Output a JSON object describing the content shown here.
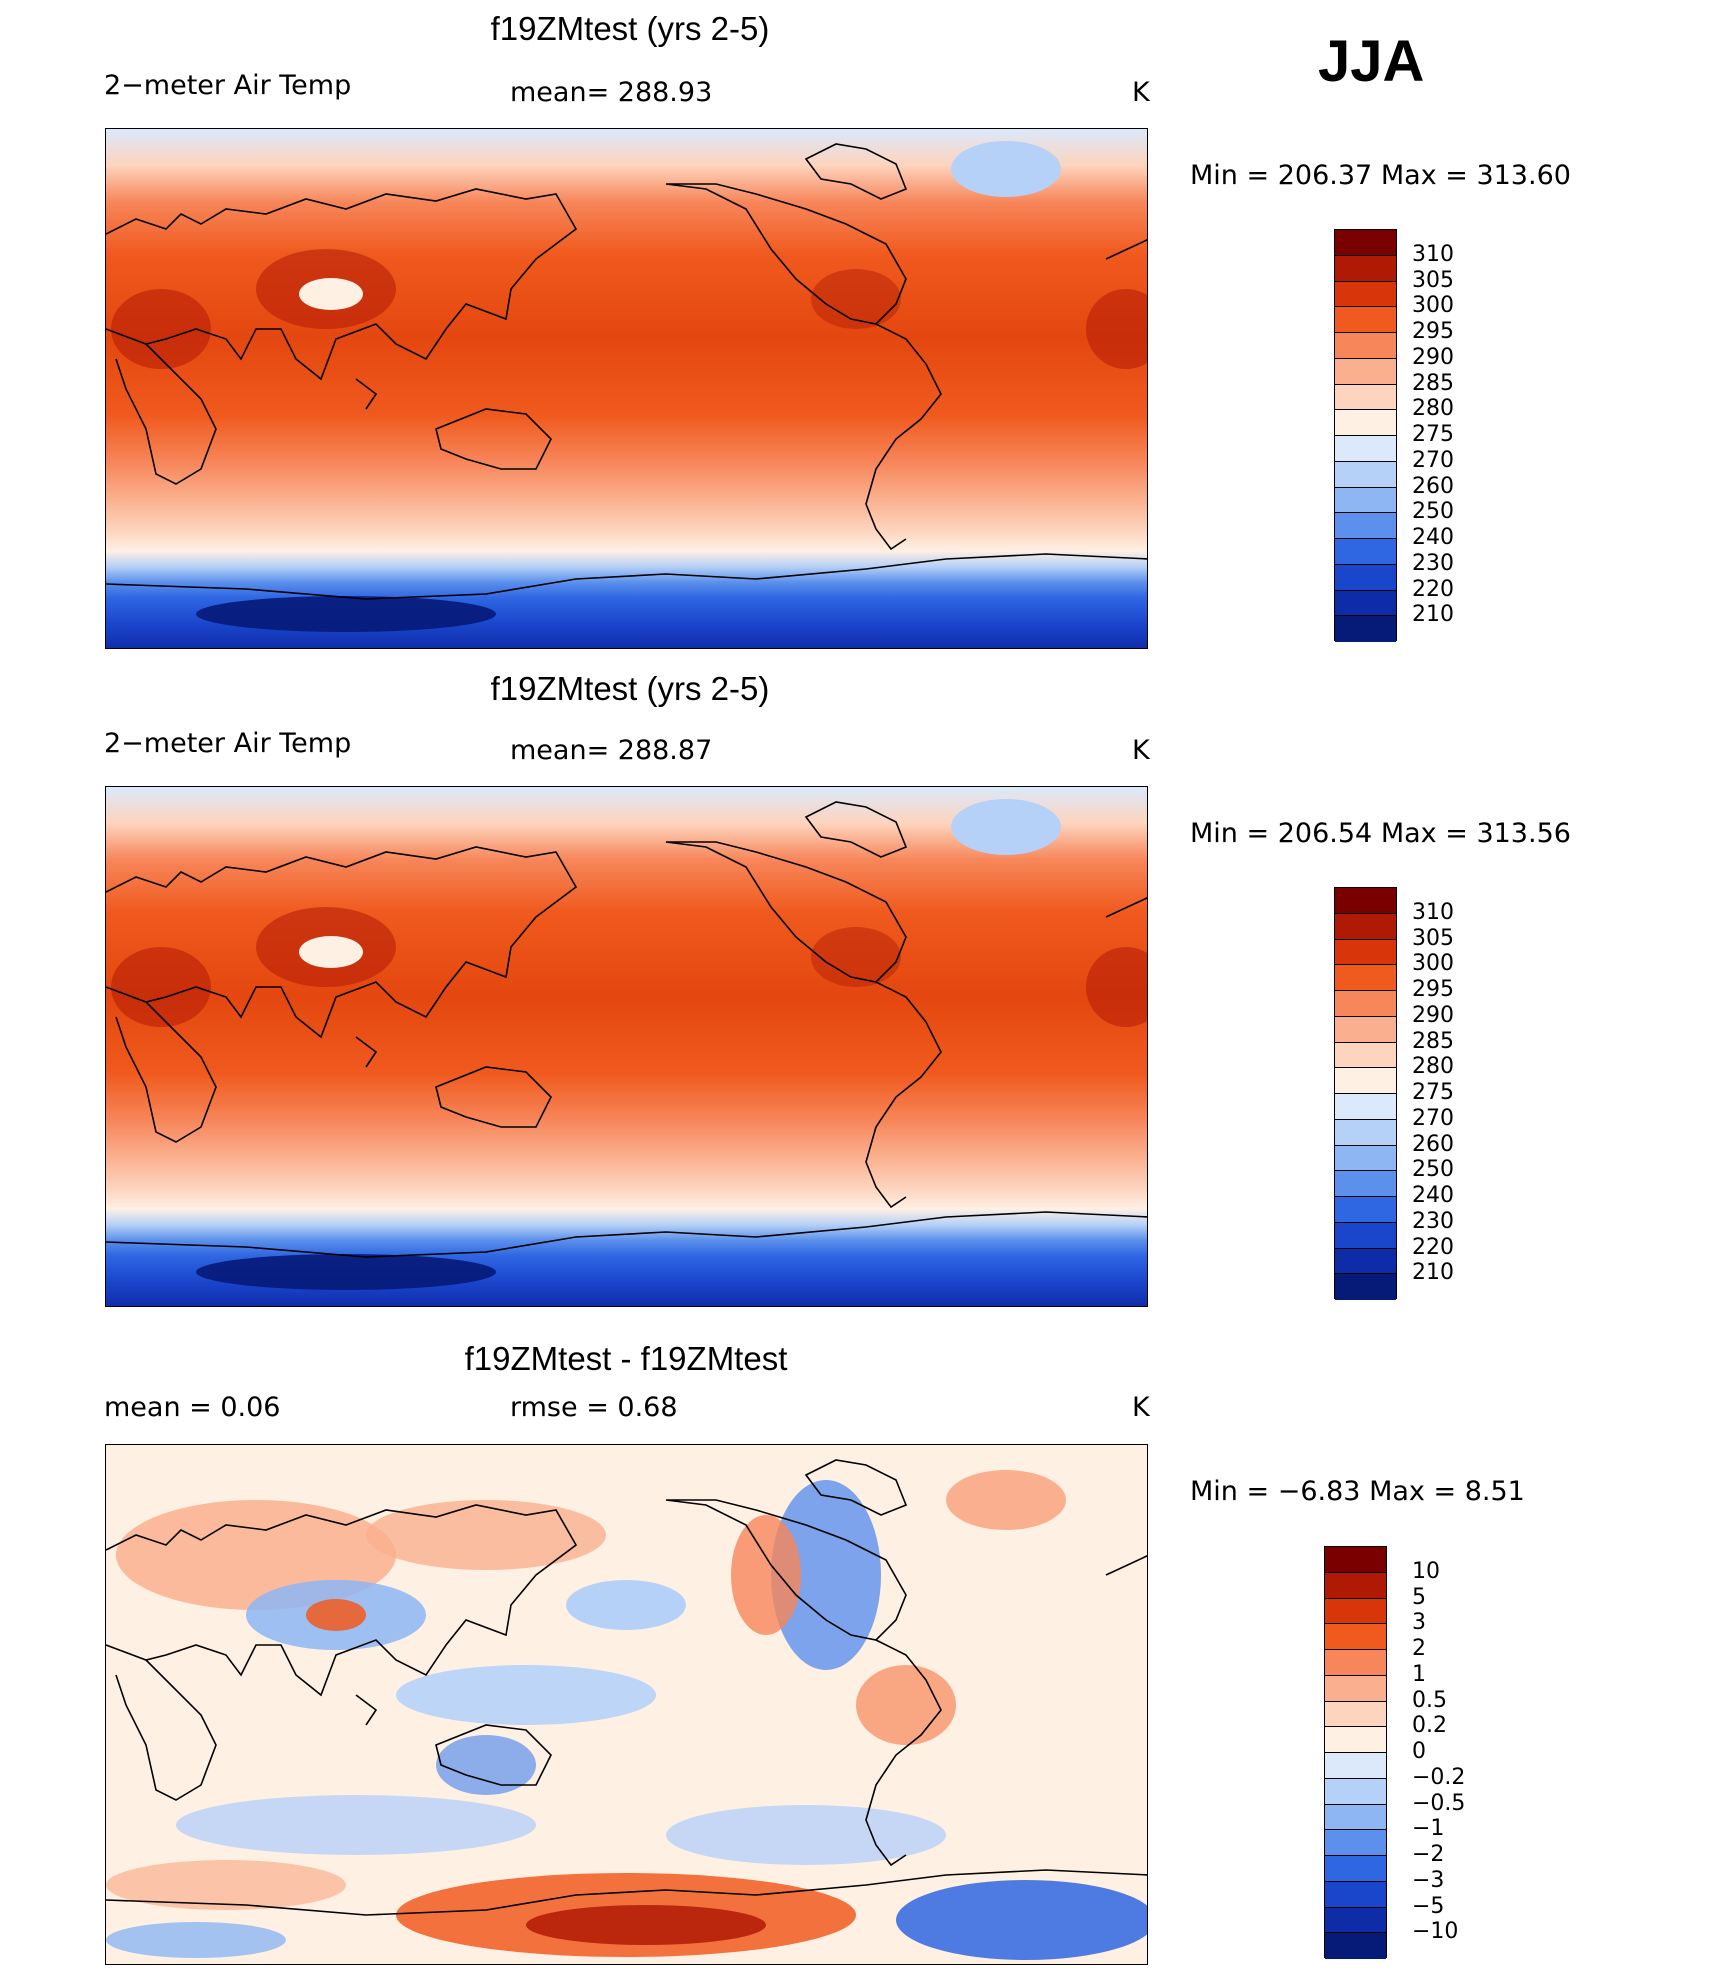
{
  "season": "JJA",
  "panels": [
    {
      "title": "f19ZMtest (yrs 2-5)",
      "left_label": "2−meter Air Temp",
      "mean_label": "mean=  288.93",
      "units": "K",
      "min_label": "Min",
      "min_value": "206.37",
      "max_label": "Max",
      "max_value": "313.60",
      "colorbar_ticks": [
        "310",
        "305",
        "300",
        "295",
        "290",
        "285",
        "280",
        "275",
        "270",
        "260",
        "250",
        "240",
        "230",
        "220",
        "210"
      ]
    },
    {
      "title": "f19ZMtest (yrs 2-5)",
      "left_label": "2−meter Air Temp",
      "mean_label": "mean=  288.87",
      "units": "K",
      "min_label": "Min",
      "min_value": "206.54",
      "max_label": "Max",
      "max_value": "313.56",
      "colorbar_ticks": [
        "310",
        "305",
        "300",
        "295",
        "290",
        "285",
        "280",
        "275",
        "270",
        "260",
        "250",
        "240",
        "230",
        "220",
        "210"
      ]
    },
    {
      "title": "f19ZMtest - f19ZMtest",
      "left_label": "mean =     0.06",
      "mean_label": "rmse =     0.68",
      "units": "K",
      "min_label": "Min",
      "min_value": "−6.83",
      "max_label": "Max",
      "max_value": "8.51",
      "colorbar_ticks": [
        "10",
        "5",
        "3",
        "2",
        "1",
        "0.5",
        "0.2",
        "0",
        "−0.2",
        "−0.5",
        "−1",
        "−2",
        "−3",
        "−5",
        "−10"
      ]
    }
  ],
  "colors": {
    "temp_scale": [
      "#7a0000",
      "#b01a05",
      "#d9350a",
      "#f05a1e",
      "#f7865a",
      "#fab08e",
      "#fdd4bd",
      "#fff0e4",
      "#dbe9fb",
      "#b6d1f7",
      "#8db6f3",
      "#5b90ec",
      "#2f66e2",
      "#1a46cc",
      "#0f2ca8",
      "#061a78"
    ],
    "diff_scale": [
      "#7a0000",
      "#b01a05",
      "#d9350a",
      "#f05a1e",
      "#f7865a",
      "#fab08e",
      "#fdd4bd",
      "#fff0e4",
      "#dbe9fb",
      "#b6d1f7",
      "#8db6f3",
      "#5b90ec",
      "#2f66e2",
      "#1a46cc",
      "#0f2ca8",
      "#061a78"
    ]
  }
}
